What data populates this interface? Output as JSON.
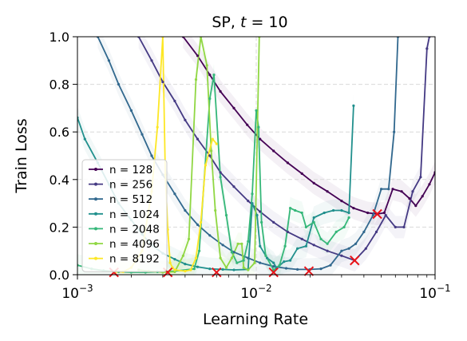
{
  "chart_data": {
    "type": "line",
    "title_prefix": "SP, ",
    "title_var": "t",
    "title_suffix": " = 10",
    "xlabel": "Learning Rate",
    "ylabel": "Train Loss",
    "xscale": "log",
    "xlim": [
      0.001,
      0.1
    ],
    "ylim": [
      0,
      1.0
    ],
    "grid": true,
    "legend_position": "lower-left",
    "x_ticks": [
      {
        "base": "10",
        "exp": "−3",
        "value": 0.001
      },
      {
        "base": "10",
        "exp": "−2",
        "value": 0.01
      },
      {
        "base": "10",
        "exp": "−1",
        "value": 0.1
      }
    ],
    "y_ticks": [
      {
        "label": "0.0",
        "value": 0.0
      },
      {
        "label": "0.2",
        "value": 0.2
      },
      {
        "label": "0.4",
        "value": 0.4
      },
      {
        "label": "0.6",
        "value": 0.6
      },
      {
        "label": "0.8",
        "value": 0.8
      },
      {
        "label": "1.0",
        "value": 1.0
      }
    ],
    "series": [
      {
        "name": "n = 128",
        "color": "#440154",
        "points": [
          [
            0.0039,
            1.0
          ],
          [
            0.0047,
            0.92
          ],
          [
            0.0055,
            0.84
          ],
          [
            0.0063,
            0.77
          ],
          [
            0.0075,
            0.7
          ],
          [
            0.0089,
            0.63
          ],
          [
            0.0105,
            0.57
          ],
          [
            0.0125,
            0.52
          ],
          [
            0.015,
            0.47
          ],
          [
            0.018,
            0.425
          ],
          [
            0.021,
            0.385
          ],
          [
            0.025,
            0.35
          ],
          [
            0.03,
            0.31
          ],
          [
            0.035,
            0.28
          ],
          [
            0.042,
            0.26
          ],
          [
            0.0475,
            0.255
          ],
          [
            0.052,
            0.26
          ],
          [
            0.058,
            0.36
          ],
          [
            0.065,
            0.35
          ],
          [
            0.072,
            0.32
          ],
          [
            0.078,
            0.29
          ],
          [
            0.085,
            0.33
          ],
          [
            0.093,
            0.38
          ],
          [
            0.1,
            0.43
          ]
        ]
      },
      {
        "name": "n = 256",
        "color": "#443983",
        "points": [
          [
            0.0022,
            1.0
          ],
          [
            0.0026,
            0.9
          ],
          [
            0.003,
            0.81
          ],
          [
            0.0035,
            0.73
          ],
          [
            0.004,
            0.65
          ],
          [
            0.0047,
            0.57
          ],
          [
            0.0055,
            0.5
          ],
          [
            0.0063,
            0.43
          ],
          [
            0.0075,
            0.37
          ],
          [
            0.009,
            0.31
          ],
          [
            0.0105,
            0.265
          ],
          [
            0.0125,
            0.22
          ],
          [
            0.015,
            0.18
          ],
          [
            0.018,
            0.15
          ],
          [
            0.021,
            0.125
          ],
          [
            0.025,
            0.1
          ],
          [
            0.03,
            0.08
          ],
          [
            0.0355,
            0.06
          ],
          [
            0.041,
            0.11
          ],
          [
            0.047,
            0.18
          ],
          [
            0.053,
            0.25
          ],
          [
            0.06,
            0.2
          ],
          [
            0.067,
            0.2
          ],
          [
            0.075,
            0.35
          ],
          [
            0.083,
            0.41
          ],
          [
            0.09,
            0.95
          ],
          [
            0.093,
            1.0
          ]
        ]
      },
      {
        "name": "n = 512",
        "color": "#31688e",
        "points": [
          [
            0.0013,
            1.0
          ],
          [
            0.0015,
            0.9
          ],
          [
            0.0017,
            0.8
          ],
          [
            0.002,
            0.69
          ],
          [
            0.0023,
            0.59
          ],
          [
            0.0026,
            0.5
          ],
          [
            0.003,
            0.42
          ],
          [
            0.0035,
            0.34
          ],
          [
            0.004,
            0.27
          ],
          [
            0.0047,
            0.21
          ],
          [
            0.0055,
            0.165
          ],
          [
            0.0065,
            0.125
          ],
          [
            0.0075,
            0.095
          ],
          [
            0.009,
            0.07
          ],
          [
            0.0105,
            0.05
          ],
          [
            0.0125,
            0.035
          ],
          [
            0.0147,
            0.027
          ],
          [
            0.017,
            0.022
          ],
          [
            0.02,
            0.022
          ],
          [
            0.023,
            0.025
          ],
          [
            0.026,
            0.04
          ],
          [
            0.03,
            0.1
          ],
          [
            0.033,
            0.11
          ],
          [
            0.036,
            0.13
          ],
          [
            0.04,
            0.18
          ],
          [
            0.045,
            0.25
          ],
          [
            0.05,
            0.36
          ],
          [
            0.055,
            0.36
          ],
          [
            0.059,
            0.6
          ],
          [
            0.062,
            1.0
          ]
        ]
      },
      {
        "name": "n = 1024",
        "color": "#21908d",
        "points": [
          [
            0.001,
            0.66
          ],
          [
            0.0011,
            0.57
          ],
          [
            0.0013,
            0.47
          ],
          [
            0.0015,
            0.38
          ],
          [
            0.0017,
            0.3
          ],
          [
            0.002,
            0.23
          ],
          [
            0.0023,
            0.17
          ],
          [
            0.0026,
            0.125
          ],
          [
            0.003,
            0.09
          ],
          [
            0.0035,
            0.065
          ],
          [
            0.004,
            0.045
          ],
          [
            0.0047,
            0.033
          ],
          [
            0.0055,
            0.025
          ],
          [
            0.0065,
            0.022
          ],
          [
            0.0075,
            0.02
          ],
          [
            0.009,
            0.022
          ],
          [
            0.0095,
            0.3
          ],
          [
            0.0101,
            0.25
          ],
          [
            0.0105,
            0.12
          ],
          [
            0.0115,
            0.07
          ],
          [
            0.0125,
            0.05
          ],
          [
            0.013,
            0.028
          ],
          [
            0.0143,
            0.055
          ],
          [
            0.0155,
            0.06
          ],
          [
            0.017,
            0.11
          ],
          [
            0.019,
            0.12
          ],
          [
            0.021,
            0.24
          ],
          [
            0.024,
            0.26
          ],
          [
            0.027,
            0.27
          ],
          [
            0.03,
            0.27
          ],
          [
            0.033,
            0.26
          ],
          [
            0.035,
            0.71
          ]
        ]
      },
      {
        "name": "n = 2048",
        "color": "#35b779",
        "points": [
          [
            0.001,
            0.04
          ],
          [
            0.0012,
            0.025
          ],
          [
            0.0014,
            0.017
          ],
          [
            0.0017,
            0.012
          ],
          [
            0.002,
            0.01
          ],
          [
            0.0024,
            0.01
          ],
          [
            0.0028,
            0.012
          ],
          [
            0.0035,
            0.015
          ],
          [
            0.0045,
            0.025
          ],
          [
            0.0048,
            0.1
          ],
          [
            0.0055,
            0.74
          ],
          [
            0.0058,
            0.84
          ],
          [
            0.0063,
            0.41
          ],
          [
            0.0068,
            0.25
          ],
          [
            0.0073,
            0.095
          ],
          [
            0.0078,
            0.05
          ],
          [
            0.0085,
            0.06
          ],
          [
            0.009,
            0.14
          ],
          [
            0.0095,
            0.34
          ],
          [
            0.01,
            0.69
          ],
          [
            0.0103,
            0.62
          ],
          [
            0.0107,
            0.22
          ],
          [
            0.0113,
            0.08
          ],
          [
            0.0125,
            0.02
          ],
          [
            0.0135,
            0.04
          ],
          [
            0.0145,
            0.12
          ],
          [
            0.0155,
            0.28
          ],
          [
            0.0165,
            0.27
          ],
          [
            0.018,
            0.26
          ],
          [
            0.019,
            0.2
          ],
          [
            0.021,
            0.22
          ],
          [
            0.023,
            0.15
          ],
          [
            0.025,
            0.13
          ],
          [
            0.028,
            0.18
          ],
          [
            0.031,
            0.2
          ],
          [
            0.033,
            0.24
          ]
        ]
      },
      {
        "name": "n = 4096",
        "color": "#90d743",
        "points": [
          [
            0.0022,
            0.02
          ],
          [
            0.0025,
            0.015
          ],
          [
            0.003,
            0.01
          ],
          [
            0.0035,
            0.012
          ],
          [
            0.0039,
            0.08
          ],
          [
            0.0042,
            0.15
          ],
          [
            0.0046,
            0.82
          ],
          [
            0.0049,
            1.0
          ],
          [
            0.0053,
            0.88
          ],
          [
            0.0056,
            0.52
          ],
          [
            0.0059,
            0.27
          ],
          [
            0.0063,
            0.07
          ],
          [
            0.0068,
            0.03
          ],
          [
            0.0073,
            0.07
          ],
          [
            0.0079,
            0.13
          ],
          [
            0.0083,
            0.13
          ],
          [
            0.0085,
            0.03
          ],
          [
            0.009,
            0.02
          ],
          [
            0.0098,
            0.05
          ],
          [
            0.0104,
            1.0
          ]
        ]
      },
      {
        "name": "n = 8192",
        "color": "#fde725",
        "points": [
          [
            0.0016,
            0.01
          ],
          [
            0.0018,
            0.012
          ],
          [
            0.002,
            0.03
          ],
          [
            0.0023,
            0.1
          ],
          [
            0.0026,
            0.35
          ],
          [
            0.0028,
            0.62
          ],
          [
            0.003,
            1.0
          ],
          [
            0.0031,
            0.42
          ],
          [
            0.0032,
            0.19
          ],
          [
            0.0033,
            0.05
          ],
          [
            0.0034,
            0.03
          ],
          [
            0.0035,
            0.02
          ],
          [
            0.004,
            0.015
          ],
          [
            0.0043,
            0.02
          ],
          [
            0.0046,
            0.07
          ],
          [
            0.0049,
            0.22
          ],
          [
            0.0052,
            0.46
          ],
          [
            0.0057,
            0.57
          ],
          [
            0.006,
            0.55
          ]
        ]
      }
    ],
    "optima": [
      {
        "x": 0.0016,
        "y": 0.01
      },
      {
        "x": 0.0032,
        "y": 0.01
      },
      {
        "x": 0.006,
        "y": 0.01
      },
      {
        "x": 0.0125,
        "y": 0.01
      },
      {
        "x": 0.0197,
        "y": 0.015
      },
      {
        "x": 0.0355,
        "y": 0.06
      },
      {
        "x": 0.0475,
        "y": 0.255
      }
    ]
  }
}
